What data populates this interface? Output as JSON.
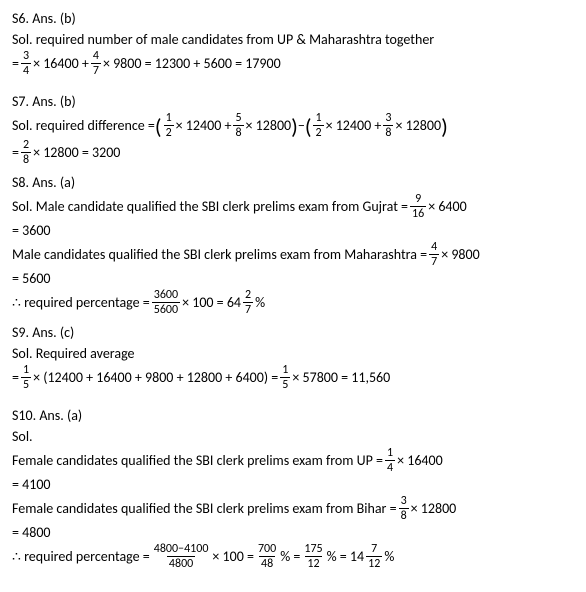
{
  "s6": {
    "qnum": "S6",
    "ans": ". Ans. (b)",
    "intro": "Sol. required number of male candidates from UP & Maharashtra together",
    "calc_prefix": "= ",
    "f1_num": "3",
    "f1_den": "4",
    "mid1": " × 16400 + ",
    "f2_num": "4",
    "f2_den": "7",
    "mid2": " × 9800 = 12300 + 5600 = 17900"
  },
  "s7": {
    "qnum": "S7",
    "ans": ". Ans. (b)",
    "intro": "Sol. required difference = ",
    "f1_num": "1",
    "f1_den": "2",
    "mid1": " × 12400 + ",
    "f2_num": "5",
    "f2_den": "8",
    "mid2": " × 12800",
    "minus": " − ",
    "f3_num": "1",
    "f3_den": "2",
    "mid3": " × 12400 + ",
    "f4_num": "3",
    "f4_den": "8",
    "mid4": " × 12800",
    "l2_prefix": "= ",
    "f5_num": "2",
    "f5_den": "8",
    "l2_suffix": " × 12800 = 3200"
  },
  "s8": {
    "qnum": "S8",
    "ans": ". Ans. (a)",
    "l1a": "Sol. Male candidate qualified the SBI clerk prelims exam from Gujrat = ",
    "f1_num": "9",
    "f1_den": "16",
    "l1b": " × 6400",
    "l2": "= 3600",
    "l3a": "Male candidates qualified the SBI clerk prelims exam from Maharashtra = ",
    "f2_num": "4",
    "f2_den": "7",
    "l3b": " × 9800",
    "l4": "= 5600",
    "l5a": "∴ required percentage = ",
    "f3_num": "3600",
    "f3_den": "5600",
    "l5b": " × 100 = 64",
    "f4_num": "2",
    "f4_den": "7",
    "l5c": "%"
  },
  "s9": {
    "qnum": "S9",
    "ans": ". Ans. (c)",
    "l1": "Sol. Required average",
    "l2a": "= ",
    "f1_num": "1",
    "f1_den": "5",
    "l2b": " × (12400 + 16400 + 9800 + 12800 + 6400) = ",
    "f2_num": "1",
    "f2_den": "5",
    "l2c": " × 57800 = 11,560"
  },
  "s10": {
    "qnum": "S10",
    "ans": ". Ans. (a)",
    "l1": "Sol.",
    "l2a": "Female candidates qualified the SBI clerk prelims exam from UP = ",
    "f1_num": "1",
    "f1_den": "4",
    "l2b": " × 16400",
    "l3": "= 4100",
    "l4a": "Female candidates qualified the SBI clerk prelims exam from Bihar = ",
    "f2_num": "3",
    "f2_den": "8",
    "l4b": " × 12800",
    "l5": "= 4800",
    "l6a": "∴ required percentage = ",
    "f3_num": "4800−4100",
    "f3_den": "4800",
    "l6b": " × 100 = ",
    "f4_num": "700",
    "f4_den": "48",
    "l6c": "% = ",
    "f5_num": "175",
    "f5_den": "12",
    "l6d": "% = 14",
    "f6_num": "7",
    "f6_den": "12",
    "l6e": "%"
  }
}
